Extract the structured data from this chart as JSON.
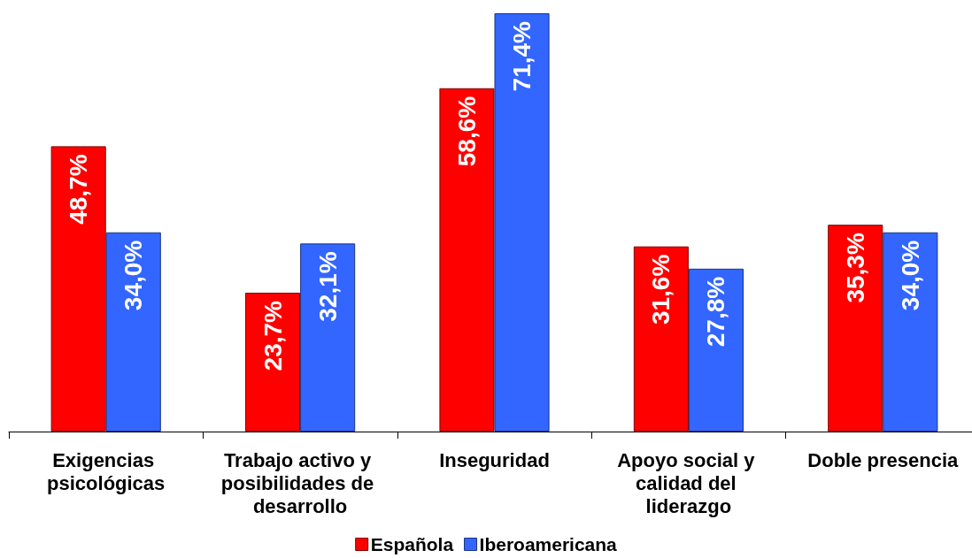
{
  "chart_data": {
    "type": "bar",
    "categories": [
      "Exigencias psicológicas",
      "Trabajo activo y posibilidades de desarrollo",
      "Inseguridad",
      "Apoyo social y calidad del liderazgo",
      "Doble presencia"
    ],
    "series": [
      {
        "name": "Española",
        "color": "#ff0000",
        "values": [
          48.7,
          23.7,
          58.6,
          31.6,
          35.3
        ],
        "value_labels": [
          "48,7%",
          "23,7%",
          "58,6%",
          "31,6%",
          "35,3%"
        ]
      },
      {
        "name": "Iberoamericana",
        "color": "#3366ff",
        "values": [
          34.0,
          32.1,
          71.4,
          27.8,
          34.0
        ],
        "value_labels": [
          "34,0%",
          "32,1%",
          "71,4%",
          "27,8%",
          "34,0%"
        ]
      }
    ],
    "legend": "bottom",
    "grid": false
  }
}
